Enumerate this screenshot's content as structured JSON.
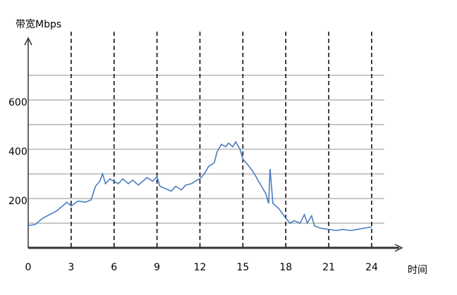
{
  "chart_data": {
    "type": "line",
    "y_label": "带宽Mbps",
    "x_label": "时间",
    "x": [
      0,
      0.5,
      1,
      2,
      2.7,
      3,
      3.5,
      4,
      4.4,
      4.7,
      5,
      5.2,
      5.4,
      5.7,
      6,
      6.3,
      6.6,
      7,
      7.3,
      7.7,
      8,
      8.3,
      8.7,
      9,
      9.2,
      9.6,
      10,
      10.3,
      10.7,
      11,
      11.4,
      11.8,
      12,
      12.3,
      12.6,
      13,
      13.2,
      13.5,
      13.8,
      14,
      14.3,
      14.5,
      14.8,
      15,
      15.3,
      15.7,
      16,
      16.3,
      16.6,
      16.8,
      16.9,
      17.1,
      17.5,
      18,
      18.3,
      18.6,
      19,
      19.3,
      19.5,
      19.8,
      20,
      20.4,
      21,
      21.5,
      22,
      22.5,
      23,
      23.5,
      24
    ],
    "series": [
      {
        "color": "#4a7cc0",
        "values": [
          90,
          95,
          120,
          150,
          185,
          170,
          190,
          185,
          195,
          250,
          270,
          300,
          260,
          280,
          270,
          260,
          280,
          260,
          275,
          255,
          270,
          285,
          270,
          290,
          250,
          240,
          230,
          250,
          235,
          255,
          260,
          275,
          280,
          300,
          330,
          345,
          390,
          420,
          410,
          425,
          410,
          430,
          400,
          360,
          340,
          310,
          280,
          250,
          220,
          180,
          320,
          180,
          160,
          120,
          100,
          110,
          100,
          135,
          100,
          130,
          90,
          80,
          75,
          70,
          75,
          70,
          75,
          80,
          85
        ]
      }
    ],
    "xlim": [
      0,
      24
    ],
    "xticks": [
      0,
      3,
      6,
      9,
      12,
      15,
      18,
      21,
      24
    ],
    "ylim": [
      0,
      700
    ],
    "yticks": [
      200,
      400,
      600
    ],
    "minor_yticks": [
      100,
      300,
      500,
      700
    ],
    "grid": true
  }
}
